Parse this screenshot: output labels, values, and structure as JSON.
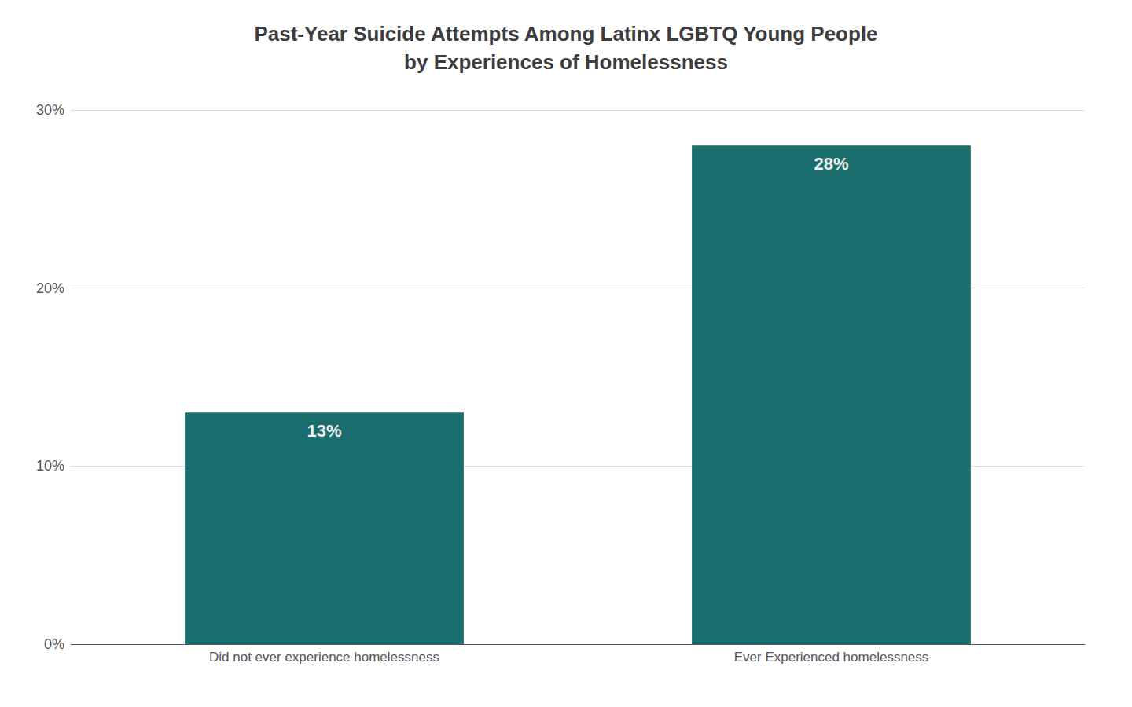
{
  "chart_data": {
    "type": "bar",
    "title": "Past-Year Suicide Attempts Among Latinx LGBTQ Young People\nby Experiences of Homelessness",
    "categories": [
      "Did not ever experience homelessness",
      "Ever Experienced homelessness"
    ],
    "values": [
      13,
      28
    ],
    "value_labels": [
      "13%",
      "28%"
    ],
    "data_labels": true,
    "color": "#1a6e6e",
    "ylim": [
      0,
      30
    ],
    "yticks": [
      {
        "value": 0,
        "label": "0%"
      },
      {
        "value": 10,
        "label": "10%"
      },
      {
        "value": 20,
        "label": "20%"
      },
      {
        "value": 30,
        "label": "30%"
      }
    ],
    "grid": true
  }
}
